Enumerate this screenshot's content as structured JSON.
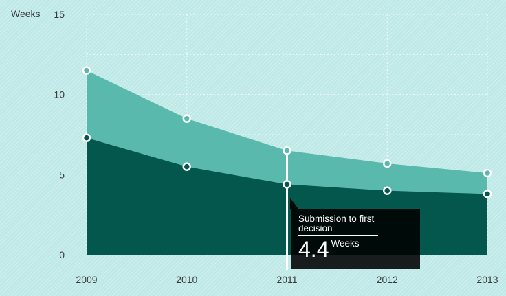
{
  "chart_data": {
    "type": "area",
    "stacked": false,
    "x": [
      "2009",
      "2010",
      "2011",
      "2012",
      "2013"
    ],
    "ylabel": "Weeks",
    "ylim": [
      0,
      15
    ],
    "yticks": [
      "0",
      "5",
      "10",
      "15"
    ],
    "grid": true,
    "series": [
      {
        "values": [
          11.5,
          8.5,
          6.5,
          5.7,
          5.1
        ],
        "color": "#5ab9ad"
      },
      {
        "values": [
          7.3,
          5.5,
          4.4,
          4.0,
          3.8
        ],
        "color": "#04574d"
      }
    ]
  },
  "tooltip": {
    "label": "Submission to first decision",
    "value": "4.4",
    "unit": "Weeks",
    "category_index": 2
  }
}
